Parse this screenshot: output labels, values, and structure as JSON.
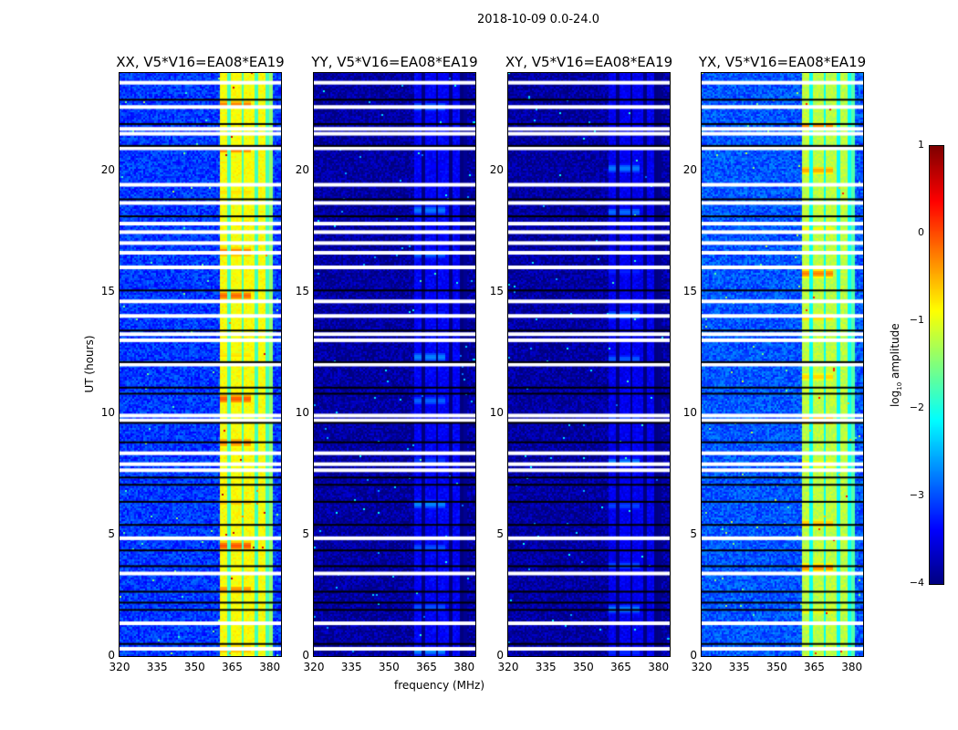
{
  "suptitle": "2018-10-09 0.0-24.0",
  "chart_data": {
    "type": "heatmap",
    "xlabel": "frequency (MHz)",
    "ylabel": "UT (hours)",
    "xlim": [
      320,
      384.5
    ],
    "ylim": [
      0,
      24
    ],
    "xticks": [
      "320",
      "335",
      "350",
      "365",
      "380"
    ],
    "yticks": [
      "0",
      "5",
      "10",
      "15",
      "20"
    ],
    "xtick_values": [
      320,
      335,
      350,
      365,
      380
    ],
    "ytick_values": [
      0,
      5,
      10,
      15,
      20
    ],
    "colorbar": {
      "label": "log10 amplitude",
      "label_main": "log",
      "label_sub": "10",
      "label_rest": " amplitude",
      "range": [
        -4,
        1
      ],
      "ticks": [
        "1",
        "0",
        "−1",
        "−2",
        "−3",
        "−4"
      ],
      "tick_values": [
        1,
        0,
        -1,
        -2,
        -3,
        -4
      ],
      "colormap": "jet"
    },
    "flagged_ut_white": [
      23.6,
      22.6,
      21.7,
      21.5,
      20.9,
      19.4,
      18.65,
      17.8,
      17.45,
      17.0,
      16.6,
      16.0,
      14.6,
      14.0,
      13.25,
      13.0,
      12.0,
      9.9,
      9.7,
      8.35,
      7.9,
      7.65,
      4.85,
      3.4,
      1.35,
      0.3
    ],
    "flagged_ut_black": [
      22.9,
      21.9,
      21.0,
      18.8,
      18.1,
      15.05,
      13.4,
      12.1,
      11.05,
      10.8,
      9.6,
      8.8,
      7.35,
      7.05,
      6.35,
      5.4,
      4.35,
      3.7,
      2.65,
      2.2,
      1.9,
      0.5
    ],
    "panels": [
      {
        "title": "XX, V5*V16=EA08*EA19",
        "background_log_amp": -3.1,
        "band_mhz": [
          360,
          380
        ],
        "band_log_amp": -0.9,
        "band_peak_log_amp": 0.1
      },
      {
        "title": "YY, V5*V16=EA08*EA19",
        "background_log_amp": -3.85,
        "band_mhz": [
          360,
          380
        ],
        "band_log_amp": -3.4,
        "band_peak_log_amp": -2.6
      },
      {
        "title": "XY, V5*V16=EA08*EA19",
        "background_log_amp": -3.85,
        "band_mhz": [
          360,
          380
        ],
        "band_log_amp": -3.45,
        "band_peak_log_amp": -2.6
      },
      {
        "title": "YX, V5*V16=EA08*EA19",
        "background_log_amp": -2.95,
        "band_mhz": [
          360,
          380
        ],
        "band_log_amp": -1.2,
        "band_peak_log_amp": -0.1
      }
    ]
  }
}
